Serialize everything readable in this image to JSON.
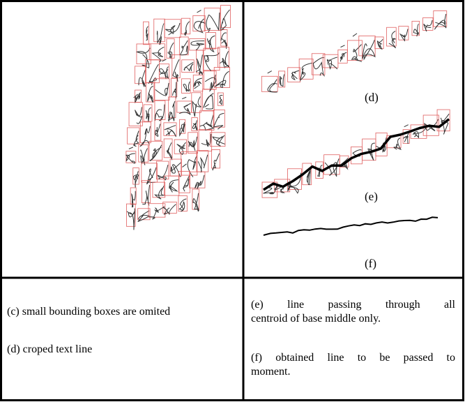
{
  "panels": {
    "d_label": "(d)",
    "e_label": "(e)",
    "f_label": "(f)"
  },
  "captions": {
    "left": [
      "(c) small bounding boxes are omited",
      "(d) croped text line"
    ],
    "right": [
      "(e) line passing through all",
      "centroid of base middle only.",
      "(f) obtained line to be passed to",
      "moment."
    ]
  }
}
